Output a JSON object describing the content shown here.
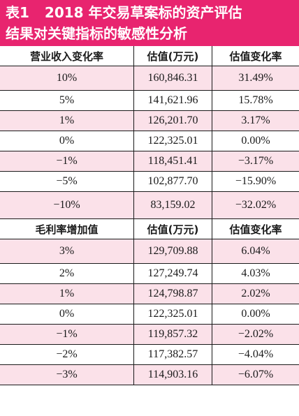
{
  "title": {
    "label": "表1",
    "line1": "2018 年交易草案标的资产评估",
    "line2": "结果对关键指标的敏感性分析"
  },
  "colors": {
    "title_bg": "#e8246f",
    "row_pink": "#fbe1e9",
    "row_white": "#ffffff"
  },
  "chart_data": {
    "type": "table",
    "sections": [
      {
        "headers": [
          "营业收入变化率",
          "估值(万元)",
          "估值变化率"
        ],
        "rows": [
          [
            "10%",
            "160,846.31",
            "31.49%"
          ],
          [
            "5%",
            "141,621.96",
            "15.78%"
          ],
          [
            "1%",
            "126,201.70",
            "3.17%"
          ],
          [
            "0%",
            "122,325.01",
            "0.00%"
          ],
          [
            "−1%",
            "118,451.41",
            "−3.17%"
          ],
          [
            "−5%",
            "102,877.70",
            "−15.90%"
          ],
          [
            "−10%",
            "83,159.02",
            "−32.02%"
          ]
        ]
      },
      {
        "headers": [
          "毛利率增加值",
          "估值(万元)",
          "估值变化率"
        ],
        "rows": [
          [
            "3%",
            "129,709.88",
            "6.04%"
          ],
          [
            "2%",
            "127,249.74",
            "4.03%"
          ],
          [
            "1%",
            "124,798.87",
            "2.02%"
          ],
          [
            "0%",
            "122,325.01",
            "0.00%"
          ],
          [
            "−1%",
            "119,857.32",
            "−2.02%"
          ],
          [
            "−2%",
            "117,382.57",
            "−4.04%"
          ],
          [
            "−3%",
            "114,903.16",
            "−6.07%"
          ]
        ]
      }
    ]
  }
}
